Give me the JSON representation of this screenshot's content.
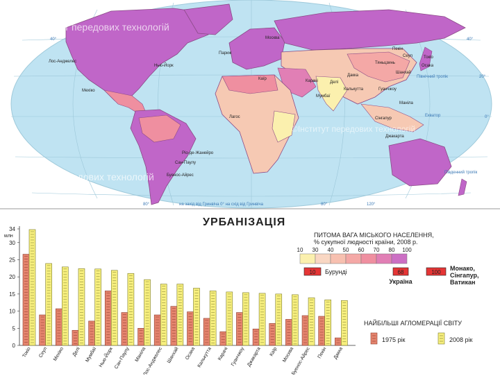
{
  "map": {
    "watermarks": [
      "©Інститут передових технологій",
      "©Інститут передових технологій",
      "©Інститут передових технологій"
    ],
    "cities": [
      "Лос-Анджелес",
      "Нью-Йорк",
      "Мехіко",
      "Париж",
      "Москва",
      "Каїр",
      "Лагос",
      "Карачі",
      "Делі",
      "Мумбаї",
      "Калькутта",
      "Даккa",
      "Пекін",
      "Сеул",
      "Токіо",
      "Осака",
      "Тяньцзинь",
      "Шанхай",
      "Гуанчжоу",
      "Маніла",
      "Сінгапур",
      "Джакарта",
      "Ріо-де-Жанейро",
      "Сан-Паулу",
      "Буенос-Айрес"
    ],
    "latitudes": [
      "40°",
      "40°",
      "20°",
      "0°",
      "Північний тропік",
      "Екватор",
      "Південний тропік"
    ],
    "longitudes": [
      "80°",
      "80°",
      "120°"
    ],
    "prime_meridian": "на захід від Гринвіча 0° на схід від Гринвіча",
    "colors": {
      "ocean": "#bfe3f2",
      "high": "#c066c8",
      "medium": "#f08a9a",
      "low": "#f6c9b3",
      "very_low": "#fbf0ae"
    }
  },
  "title": "УРБАНІЗАЦІЯ",
  "legend": {
    "share_title": "ПИТОМА ВАГА МІСЬКОГО НАСЕЛЕННЯ,",
    "share_subtitle": "% сукупної людності країни, 2008 р.",
    "scale_ticks": [
      "10",
      "30",
      "40",
      "50",
      "60",
      "70",
      "80",
      "100"
    ],
    "scale_colors": [
      "#fbf0ae",
      "#f9d7c3",
      "#f7c0b0",
      "#f4a8a6",
      "#ef8fa0",
      "#e17fb5",
      "#cc6fc4"
    ],
    "examples": [
      {
        "value": "10",
        "name": "Бурунді"
      },
      {
        "value": "68",
        "name": "Україна"
      },
      {
        "value": "100",
        "name": "Монако, Сінгапур, Ватикан"
      }
    ],
    "agglo_title": "НАЙБІЛЬШІ АГЛОМЕРАЦІЇ СВІТУ",
    "year_1975": "1975 рік",
    "year_2008": "2008 рік"
  },
  "chart_data": {
    "type": "bar",
    "ylabel": "млн",
    "ylim": [
      0,
      34
    ],
    "yticks": [
      0,
      5,
      10,
      15,
      20,
      25,
      30,
      34
    ],
    "categories": [
      "Токіо",
      "Сеул",
      "Мехіко",
      "Делі",
      "Мумбаї",
      "Нью-Йорк",
      "Сан-Паулу",
      "Маніла",
      "Лос-Анджелес",
      "Шанхай",
      "Осака",
      "Калькутта",
      "Карачі",
      "Гуанчжоу",
      "Джакарта",
      "Каїр",
      "Москва",
      "Буенос-Айрес",
      "Пекін",
      "Дакка"
    ],
    "series": [
      {
        "name": "1975 рік",
        "color": "#e5846e",
        "values": [
          26.6,
          8.9,
          10.7,
          4.4,
          7.1,
          15.9,
          9.6,
          5.0,
          8.9,
          11.4,
          9.8,
          7.9,
          4.0,
          9.6,
          4.8,
          6.4,
          7.6,
          8.7,
          8.5,
          2.2
        ]
      },
      {
        "name": "2008 рік",
        "color": "#f7ef7e",
        "values": [
          33.8,
          23.9,
          22.9,
          22.4,
          22.3,
          21.9,
          21.0,
          19.2,
          17.9,
          17.9,
          16.7,
          15.9,
          15.6,
          15.4,
          15.2,
          15.0,
          14.8,
          13.9,
          13.3,
          13.1
        ]
      }
    ]
  }
}
